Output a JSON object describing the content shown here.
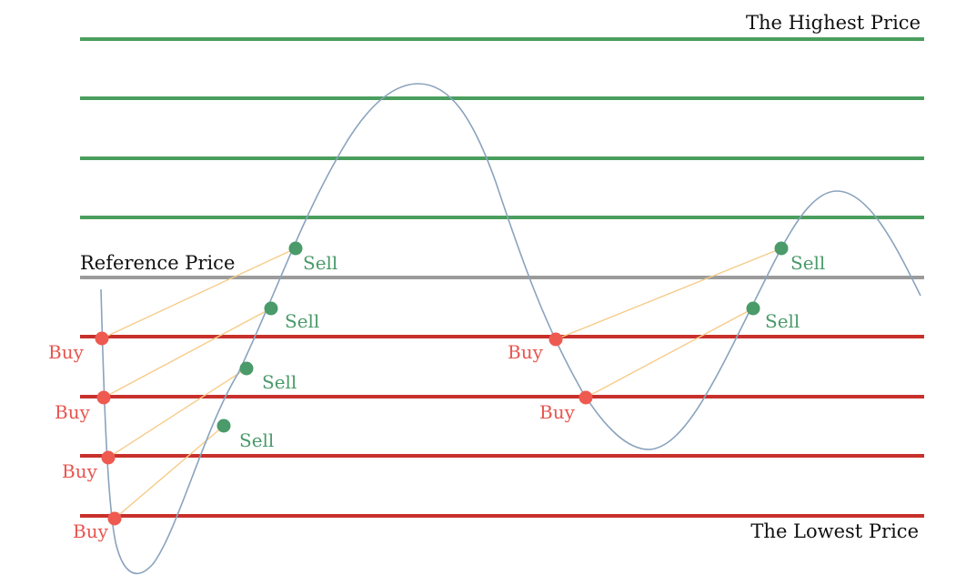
{
  "labels": {
    "highest": "The Highest Price",
    "reference": "Reference Price",
    "lowest": "The Lowest Price",
    "buy": "Buy",
    "sell": "Sell"
  },
  "colors": {
    "upper_grid": "#4a9e5e",
    "reference": "#9b9b9b",
    "lower_grid": "#c8302c",
    "price_curve": "#8aa3bd",
    "buy_point": "#ee5a50",
    "sell_point": "#4a9a6a",
    "link_line": "#f6cc8a"
  },
  "grid": {
    "upper_levels": 4,
    "lower_levels": 4
  },
  "trades": {
    "buy_count": 6,
    "sell_count": 6
  }
}
